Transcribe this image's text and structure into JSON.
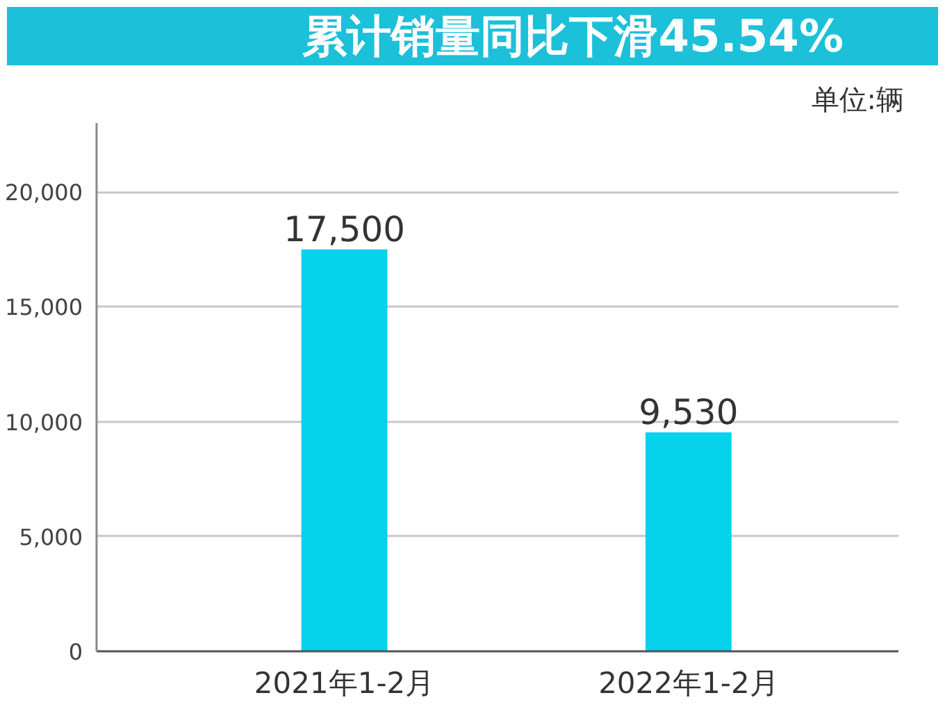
{
  "chart_data": {
    "type": "bar",
    "title": "累计销量同比下滑45.54%",
    "annotations": [
      "单位:辆"
    ],
    "categories": [
      "2021年1-2月",
      "2022年1-2月"
    ],
    "values": [
      17500,
      9530
    ],
    "value_labels": [
      "17,500",
      "9,530"
    ],
    "color": "#06d2ec",
    "ylim": [
      0,
      23000
    ],
    "yticks": [
      0,
      {
        "value": 5000,
        "label": "5,000"
      },
      {
        "value": 10000,
        "label": "10,000"
      },
      {
        "value": 15000,
        "label": "15,000"
      },
      {
        "value": 20000,
        "label": "20,000"
      }
    ],
    "grid": "y"
  }
}
